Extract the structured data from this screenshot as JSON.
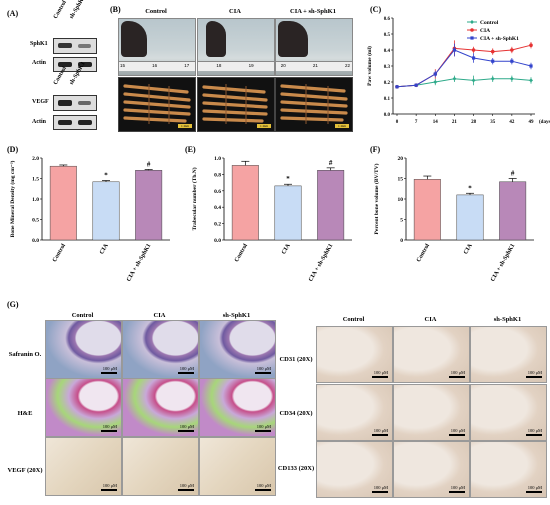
{
  "panels": {
    "A": "(A)",
    "B": "(B)",
    "C": "(C)",
    "D": "(D)",
    "E": "(E)",
    "F": "(F)",
    "G": "(G)"
  },
  "blot": {
    "top_cols": [
      "Control",
      "sh-SphK1"
    ],
    "top_rows": [
      "SphK1",
      "Actin"
    ],
    "bottom_cols": [
      "Control",
      "sh-SphK1"
    ],
    "bottom_rows": [
      "VEGF",
      "Actin"
    ]
  },
  "groupsB": [
    "Control",
    "CIA",
    "CIA + sh-SphK1"
  ],
  "ruler_nums": [
    "15",
    "16",
    "17",
    "18",
    "19",
    "20",
    "21",
    "22"
  ],
  "scale_ct": "1 mm",
  "chart_data": [
    {
      "type": "line",
      "panel": "C",
      "ylabel": "Paw volume (ml)",
      "xlabel": "(days)",
      "x": [
        0,
        7,
        14,
        21,
        28,
        35,
        42,
        49
      ],
      "ylim": [
        0,
        0.6
      ],
      "yticks": [
        0.0,
        0.1,
        0.2,
        0.3,
        0.4,
        0.5,
        0.6
      ],
      "series": [
        {
          "name": "Control",
          "color": "#2eaa8a",
          "values": [
            0.17,
            0.18,
            0.2,
            0.22,
            0.21,
            0.22,
            0.22,
            0.21
          ]
        },
        {
          "name": "CIA",
          "color": "#e63232",
          "values": [
            0.17,
            0.18,
            0.25,
            0.41,
            0.4,
            0.39,
            0.4,
            0.43
          ]
        },
        {
          "name": "CIA + sh-SphK1",
          "color": "#3344cc",
          "values": [
            0.17,
            0.18,
            0.25,
            0.4,
            0.35,
            0.33,
            0.33,
            0.3
          ]
        }
      ]
    },
    {
      "type": "bar",
      "panel": "D",
      "ylabel": "Bone Mineral Density (mg cm⁻³)",
      "categories": [
        "Control",
        "CIA",
        "CIA + sh-SphK1"
      ],
      "values": [
        1.8,
        1.42,
        1.7
      ],
      "errors": [
        0.03,
        0.03,
        0.02
      ],
      "ylim": [
        0,
        2.0
      ],
      "yticks": [
        0.0,
        0.5,
        1.0,
        1.5,
        2.0
      ],
      "marks": [
        "",
        "*",
        "#"
      ],
      "colors": [
        "#f5a3a3",
        "#c8dcf5",
        "#b888b8"
      ]
    },
    {
      "type": "bar",
      "panel": "E",
      "ylabel": "Trabecular number (Tb.N)",
      "categories": [
        "Control",
        "CIA",
        "CIA + sh-SphK1"
      ],
      "values": [
        0.91,
        0.66,
        0.85
      ],
      "errors": [
        0.05,
        0.02,
        0.03
      ],
      "ylim": [
        0,
        1.0
      ],
      "yticks": [
        0.0,
        0.2,
        0.4,
        0.6,
        0.8,
        1.0
      ],
      "marks": [
        "",
        "*",
        "#"
      ],
      "colors": [
        "#f5a3a3",
        "#c8dcf5",
        "#b888b8"
      ]
    },
    {
      "type": "bar",
      "panel": "F",
      "ylabel": "Percent bone volume (BV/TV)",
      "categories": [
        "Control",
        "CIA",
        "CIA + sh-SphK1"
      ],
      "values": [
        14.8,
        11.0,
        14.2
      ],
      "errors": [
        0.8,
        0.4,
        0.8
      ],
      "ylim": [
        0,
        20
      ],
      "yticks": [
        0,
        5,
        10,
        15,
        20
      ],
      "marks": [
        "",
        "*",
        "#"
      ],
      "colors": [
        "#f5a3a3",
        "#c8dcf5",
        "#b888b8"
      ]
    }
  ],
  "histo": {
    "cols": [
      "Control",
      "CIA",
      "sh-SphK1"
    ],
    "rows_left": [
      "Safranin O.",
      "H&E",
      "VEGF (20X)"
    ],
    "rows_right": [
      "CD31 (20X)",
      "CD34 (20X)",
      "CD133 (20X)"
    ],
    "scale": "100 μM"
  }
}
